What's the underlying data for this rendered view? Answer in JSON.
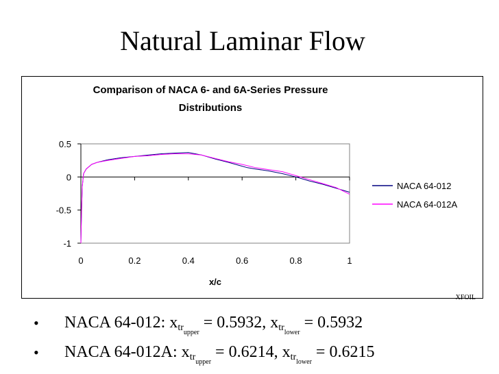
{
  "slide": {
    "title": "Natural Laminar Flow",
    "credit": "XFOIL",
    "bullets": [
      {
        "name": "NACA 64-012",
        "sep": ": x",
        "upper_sub": "tr",
        "upper_label": "upper",
        "upper_value": " = 0.5932",
        "mid": ", x",
        "lower_sub": "tr",
        "lower_label": "lower",
        "lower_value": " = 0.5932"
      },
      {
        "name": "NACA 64-012A",
        "sep": ": x",
        "upper_sub": "tr",
        "upper_label": "upper",
        "upper_value": " = 0.6214",
        "mid": ", x",
        "lower_sub": "tr",
        "lower_label": "lower",
        "lower_value": " = 0.6215"
      }
    ]
  },
  "chart_data": {
    "type": "line",
    "title_line1": "Comparison of NACA 6- and 6A-Series Pressure",
    "title_line2": "Distributions",
    "xlabel": "x/c",
    "ylabel": "",
    "xlim": [
      0,
      1
    ],
    "ylim": [
      -1,
      0.5
    ],
    "x_ticks": [
      "0",
      "0.2",
      "0.4",
      "0.6",
      "0.8",
      "1"
    ],
    "y_ticks": [
      "0.5",
      "0",
      "-0.5",
      "-1"
    ],
    "grid": false,
    "legend_position": "right",
    "series": [
      {
        "name": "NACA 64-012",
        "color": "#000080",
        "x": [
          0,
          0.002,
          0.005,
          0.01,
          0.02,
          0.04,
          0.06,
          0.1,
          0.15,
          0.2,
          0.25,
          0.3,
          0.35,
          0.4,
          0.45,
          0.5,
          0.55,
          0.593,
          0.62,
          0.65,
          0.7,
          0.75,
          0.8,
          0.85,
          0.9,
          0.95,
          1.0
        ],
        "y": [
          -1.0,
          -0.6,
          -0.15,
          0.05,
          0.12,
          0.19,
          0.22,
          0.26,
          0.29,
          0.31,
          0.33,
          0.35,
          0.36,
          0.37,
          0.33,
          0.27,
          0.22,
          0.17,
          0.14,
          0.12,
          0.09,
          0.05,
          0.0,
          -0.06,
          -0.11,
          -0.17,
          -0.23
        ]
      },
      {
        "name": "NACA 64-012A",
        "color": "#ff00ff",
        "x": [
          0,
          0.002,
          0.005,
          0.01,
          0.02,
          0.04,
          0.06,
          0.1,
          0.15,
          0.2,
          0.25,
          0.3,
          0.35,
          0.4,
          0.45,
          0.5,
          0.55,
          0.6,
          0.62,
          0.65,
          0.7,
          0.75,
          0.8,
          0.85,
          0.9,
          0.95,
          1.0
        ],
        "y": [
          -1.0,
          -0.6,
          -0.15,
          0.05,
          0.12,
          0.19,
          0.22,
          0.25,
          0.28,
          0.31,
          0.32,
          0.34,
          0.35,
          0.35,
          0.33,
          0.28,
          0.23,
          0.19,
          0.17,
          0.14,
          0.11,
          0.08,
          0.02,
          -0.04,
          -0.1,
          -0.16,
          -0.26
        ]
      }
    ]
  }
}
